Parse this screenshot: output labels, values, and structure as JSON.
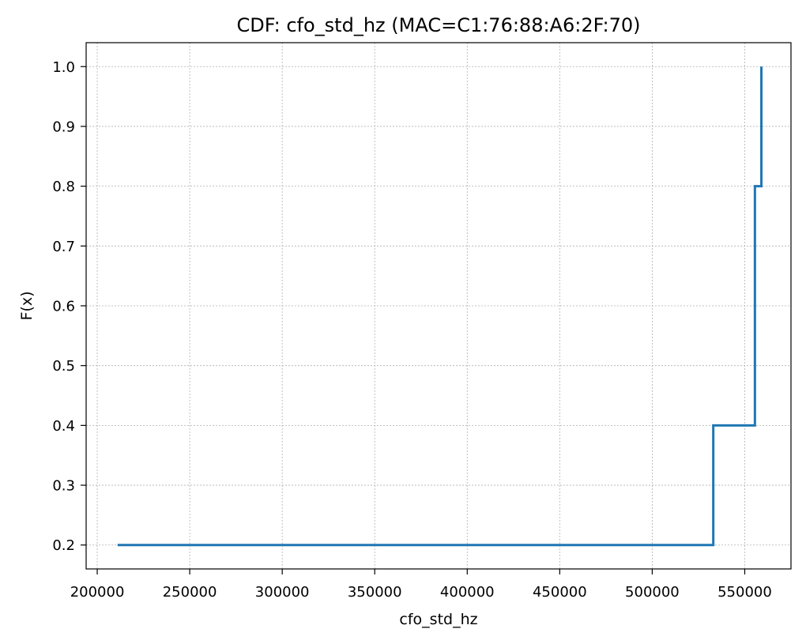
{
  "chart_data": {
    "type": "line",
    "title": "CDF: cfo_std_hz (MAC=C1:76:88:A6:2F:70)",
    "xlabel": "cfo_std_hz",
    "ylabel": "F(x)",
    "xlim": [
      194000,
      575000
    ],
    "ylim": [
      0.16,
      1.04
    ],
    "xticks": [
      200000,
      250000,
      300000,
      350000,
      400000,
      450000,
      500000,
      550000
    ],
    "yticks": [
      0.2,
      0.3,
      0.4,
      0.5,
      0.6,
      0.7,
      0.8,
      0.9,
      1.0
    ],
    "xtick_labels": [
      "200000",
      "250000",
      "300000",
      "350000",
      "400000",
      "450000",
      "500000",
      "550000"
    ],
    "ytick_labels": [
      "0.2",
      "0.3",
      "0.4",
      "0.5",
      "0.6",
      "0.7",
      "0.8",
      "0.9",
      "1.0"
    ],
    "grid": true,
    "series": [
      {
        "color": "#1f77b4",
        "step": "post",
        "x": [
          211000,
          533000,
          555500,
          559000,
          559000
        ],
        "y": [
          0.2,
          0.4,
          0.8,
          1.0,
          1.0
        ]
      }
    ]
  }
}
